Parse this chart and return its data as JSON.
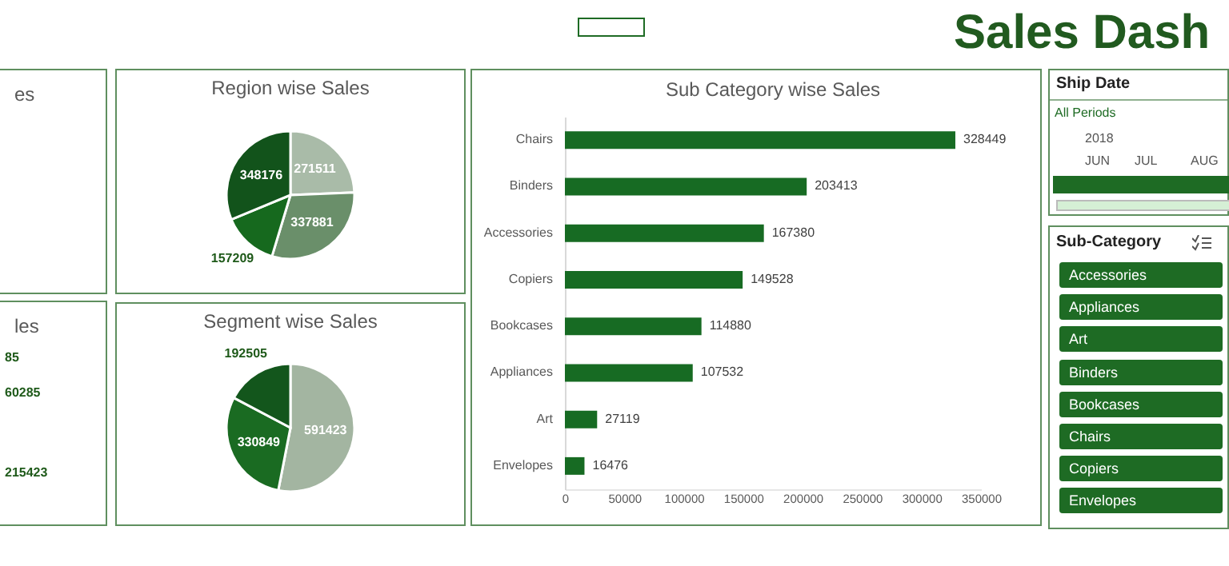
{
  "chart_data": [
    {
      "type": "other",
      "title": "Sales Dash"
    },
    {
      "type": "other",
      "title": "es"
    },
    {
      "type": "other",
      "title": "les",
      "annotations": [
        "85",
        "60285",
        "215423"
      ]
    },
    {
      "type": "pie",
      "title": "Region wise Sales",
      "categories": [
        null,
        null,
        null,
        null
      ],
      "values": [
        271511,
        337881,
        157209,
        348176
      ],
      "colors": [
        "#a9bba8",
        "#6a8f6a",
        "#16691e",
        "#12531b"
      ],
      "data_labels": true
    },
    {
      "type": "pie",
      "title": "Segment wise Sales",
      "categories": [
        null,
        null,
        null
      ],
      "values": [
        591423,
        330849,
        192505
      ],
      "colors": [
        "#a3b5a1",
        "#1a6b22",
        "#13561c"
      ],
      "data_labels": true
    },
    {
      "type": "bar",
      "title": "Sub Category wise Sales",
      "orientation": "horizontal",
      "categories": [
        "Chairs",
        "Binders",
        "Accessories",
        "Copiers",
        "Bookcases",
        "Appliances",
        "Art",
        "Envelopes"
      ],
      "values": [
        328449,
        203413,
        167380,
        149528,
        114880,
        107532,
        27119,
        16476
      ],
      "color": "#176b23",
      "xlim": [
        0,
        350000
      ],
      "xticks": [
        0,
        50000,
        100000,
        150000,
        200000,
        250000,
        300000,
        350000
      ],
      "data_labels": true,
      "grid": false
    },
    {
      "type": "other",
      "title": "Ship Date",
      "annotations": [
        "All Periods",
        "2018",
        "JUN",
        "JUL",
        "AUG"
      ]
    },
    {
      "type": "other",
      "title": "Sub-Category",
      "annotations": [
        "Accessories",
        "Appliances",
        "Art",
        "Binders",
        "Bookcases",
        "Chairs",
        "Copiers",
        "Envelopes"
      ]
    }
  ]
}
